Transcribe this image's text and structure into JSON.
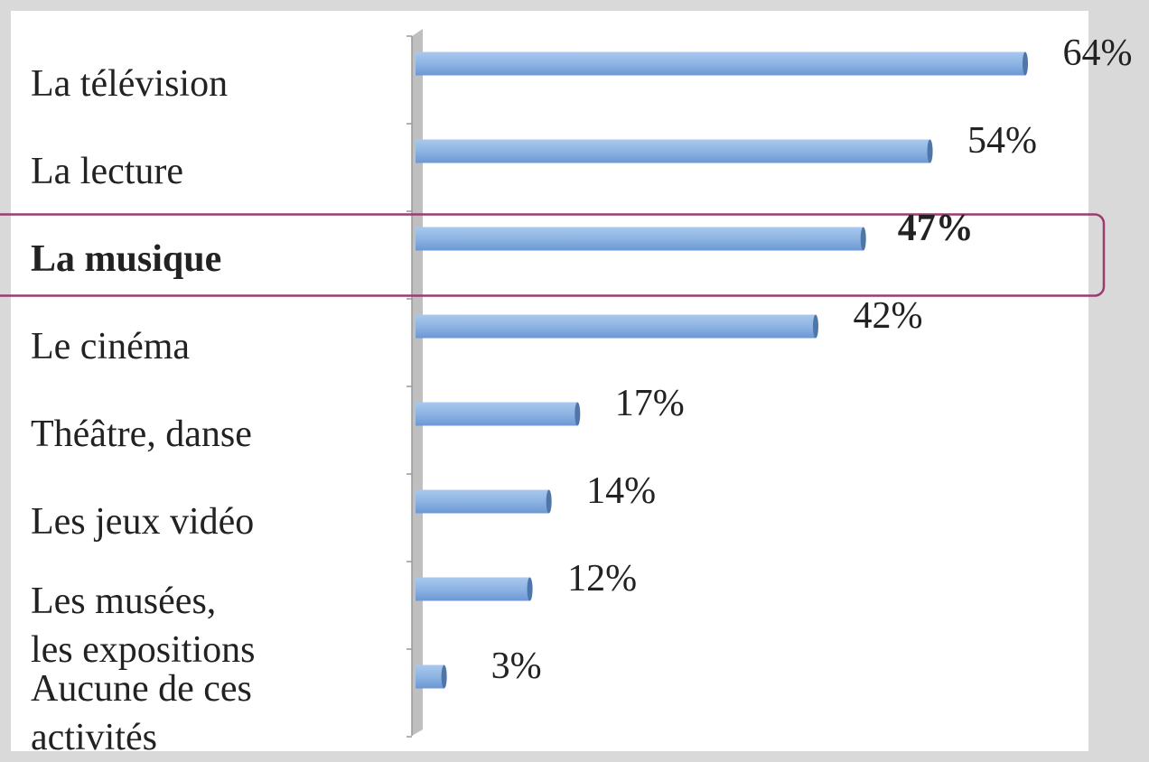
{
  "chart_data": {
    "type": "hbar",
    "categories": [
      "La télévision",
      "La lecture",
      "La musique",
      "Le cinéma",
      "Théâtre, danse",
      "Les jeux vidéo",
      "Les musées,\nles expositions",
      "Aucune de ces\nactivités"
    ],
    "values": [
      64,
      54,
      47,
      42,
      17,
      14,
      12,
      3
    ],
    "value_labels": [
      "64%",
      "54%",
      "47%",
      "42%",
      "17%",
      "14%",
      "12%",
      "3%"
    ],
    "color": "#8db4e2",
    "xlim": [
      0,
      64
    ],
    "highlight": 2
  }
}
